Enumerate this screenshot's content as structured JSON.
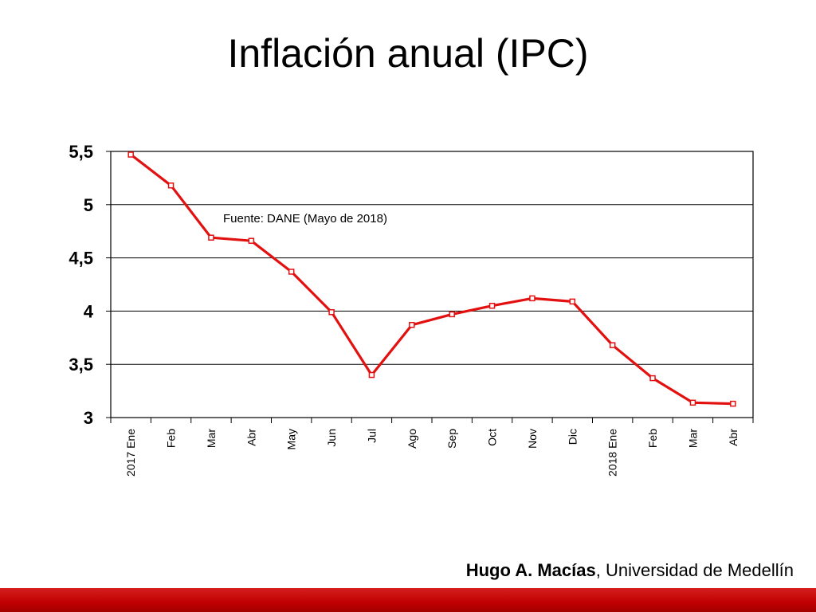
{
  "slide": {
    "title": "Inflación anual (IPC)",
    "footer_author": "Hugo A. Macías",
    "footer_separator": ", ",
    "footer_affiliation": "Universidad de Medellín"
  },
  "colors": {
    "series": "#e31010",
    "bottom_bar": "#c00000"
  },
  "chart_data": {
    "type": "line",
    "title": "",
    "xlabel": "",
    "ylabel": "",
    "annotation": "Fuente: DANE (Mayo de 2018)",
    "categories": [
      "2017 Ene",
      "Feb",
      "Mar",
      "Abr",
      "May",
      "Jun",
      "Jul",
      "Ago",
      "Sep",
      "Oct",
      "Nov",
      "Dic",
      "2018 Ene",
      "Feb",
      "Mar",
      "Abr"
    ],
    "values": [
      5.47,
      5.18,
      4.69,
      4.66,
      4.37,
      3.99,
      3.4,
      3.87,
      3.97,
      4.05,
      4.12,
      4.09,
      3.68,
      3.37,
      3.14,
      3.13
    ],
    "ylim": [
      3,
      5.5
    ],
    "yticks": [
      3,
      3.5,
      4,
      4.5,
      5,
      5.5
    ],
    "ytick_labels": [
      "3",
      "3,5",
      "4",
      "4,5",
      "5",
      "5,5"
    ],
    "grid": true,
    "legend": "none"
  }
}
